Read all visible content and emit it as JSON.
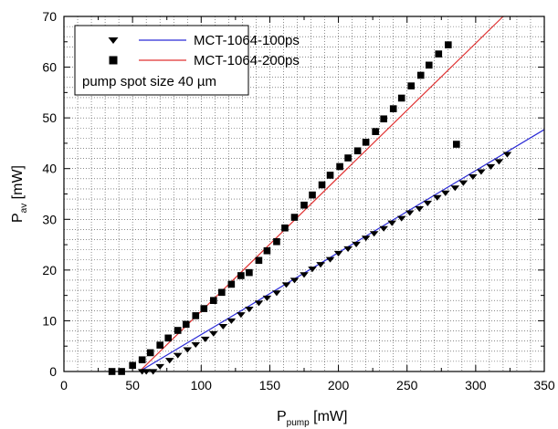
{
  "chart_data": {
    "type": "scatter",
    "xlabel_main": "P",
    "xlabel_sub": "pump",
    "xlabel_unit": " [mW]",
    "ylabel_main": "P",
    "ylabel_sub": "av",
    "ylabel_unit": " [mW]",
    "xlim": [
      0,
      350
    ],
    "ylim": [
      0,
      70
    ],
    "x_ticks": [
      0,
      50,
      100,
      150,
      200,
      250,
      300,
      350
    ],
    "y_ticks": [
      0,
      10,
      20,
      30,
      40,
      50,
      60,
      70
    ],
    "grid": true,
    "legend_position": "top-left",
    "annotation": "pump spot size 40 µm",
    "series": [
      {
        "name": "MCT-1064-100ps",
        "marker": "triangle-down",
        "marker_color": "#000000",
        "fit_color": "#2b2bd6",
        "fit_line": {
          "x": [
            55,
            350
          ],
          "y": [
            0,
            47.7
          ]
        },
        "points": [
          [
            57,
            0
          ],
          [
            60,
            0
          ],
          [
            65,
            0
          ],
          [
            70,
            1.0
          ],
          [
            77,
            2.2
          ],
          [
            83,
            3.2
          ],
          [
            90,
            4.3
          ],
          [
            96,
            5.3
          ],
          [
            103,
            6.4
          ],
          [
            109,
            7.5
          ],
          [
            116,
            8.9
          ],
          [
            122,
            10.0
          ],
          [
            129,
            11.2
          ],
          [
            135,
            12.3
          ],
          [
            142,
            13.5
          ],
          [
            148,
            14.5
          ],
          [
            155,
            15.5
          ],
          [
            162,
            17.1
          ],
          [
            168,
            18.0
          ],
          [
            175,
            19.1
          ],
          [
            181,
            20.2
          ],
          [
            187,
            21.1
          ],
          [
            194,
            22.1
          ],
          [
            200,
            23.3
          ],
          [
            207,
            24.2
          ],
          [
            213,
            25.1
          ],
          [
            220,
            26.3
          ],
          [
            226,
            27.2
          ],
          [
            233,
            28.2
          ],
          [
            239,
            29.3
          ],
          [
            246,
            30.2
          ],
          [
            252,
            31.3
          ],
          [
            259,
            32.1
          ],
          [
            265,
            33.2
          ],
          [
            272,
            34.3
          ],
          [
            278,
            35.2
          ],
          [
            285,
            36.2
          ],
          [
            291,
            37.2
          ],
          [
            298,
            38.4
          ],
          [
            304,
            39.4
          ],
          [
            311,
            40.4
          ],
          [
            317,
            41.4
          ],
          [
            323,
            42.8
          ]
        ]
      },
      {
        "name": "MCT-1064-200ps",
        "marker": "square",
        "marker_color": "#000000",
        "fit_color": "#e03030",
        "fit_line": {
          "x": [
            55,
            320
          ],
          "y": [
            0,
            70
          ]
        },
        "points": [
          [
            35,
            0
          ],
          [
            42,
            0
          ],
          [
            50,
            1.2
          ],
          [
            57,
            2.3
          ],
          [
            63,
            3.7
          ],
          [
            70,
            5.2
          ],
          [
            76,
            6.6
          ],
          [
            83,
            8.1
          ],
          [
            89,
            9.3
          ],
          [
            96,
            11.0
          ],
          [
            102,
            12.4
          ],
          [
            109,
            14.0
          ],
          [
            115,
            15.6
          ],
          [
            122,
            17.2
          ],
          [
            129,
            18.9
          ],
          [
            135,
            19.5
          ],
          [
            142,
            21.9
          ],
          [
            148,
            23.8
          ],
          [
            155,
            25.6
          ],
          [
            161,
            28.3
          ],
          [
            168,
            30.4
          ],
          [
            175,
            32.8
          ],
          [
            181,
            34.8
          ],
          [
            188,
            36.8
          ],
          [
            194,
            38.7
          ],
          [
            201,
            40.4
          ],
          [
            207,
            42.1
          ],
          [
            214,
            43.5
          ],
          [
            220,
            45.2
          ],
          [
            227,
            47.3
          ],
          [
            233,
            49.8
          ],
          [
            240,
            51.8
          ],
          [
            246,
            53.9
          ],
          [
            253,
            56.3
          ],
          [
            260,
            58.4
          ],
          [
            266,
            60.4
          ],
          [
            273,
            62.6
          ],
          [
            280,
            64.4
          ],
          [
            286,
            44.8
          ]
        ]
      }
    ]
  }
}
